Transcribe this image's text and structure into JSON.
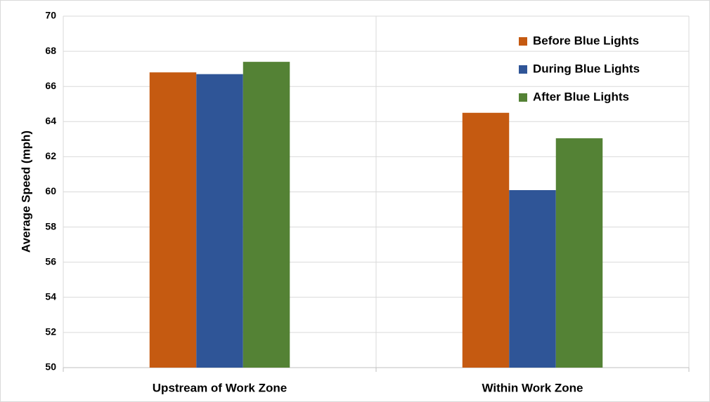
{
  "chart_data": {
    "type": "bar",
    "y_label": "Average Speed (mph)",
    "categories": [
      "Upstream of Work Zone",
      "Within Work Zone"
    ],
    "series": [
      {
        "name": "Before Blue Lights",
        "color": "#c55a11",
        "values": [
          66.8,
          64.5
        ]
      },
      {
        "name": "During Blue Lights",
        "color": "#2f5597",
        "values": [
          66.7,
          60.1
        ]
      },
      {
        "name": "After Blue Lights",
        "color": "#548235",
        "values": [
          67.4,
          63.05
        ]
      }
    ],
    "ylim": [
      50,
      70
    ],
    "yticks": [
      50,
      52,
      54,
      56,
      58,
      60,
      62,
      64,
      66,
      68,
      70
    ],
    "grid": true,
    "legend": "top-right"
  }
}
